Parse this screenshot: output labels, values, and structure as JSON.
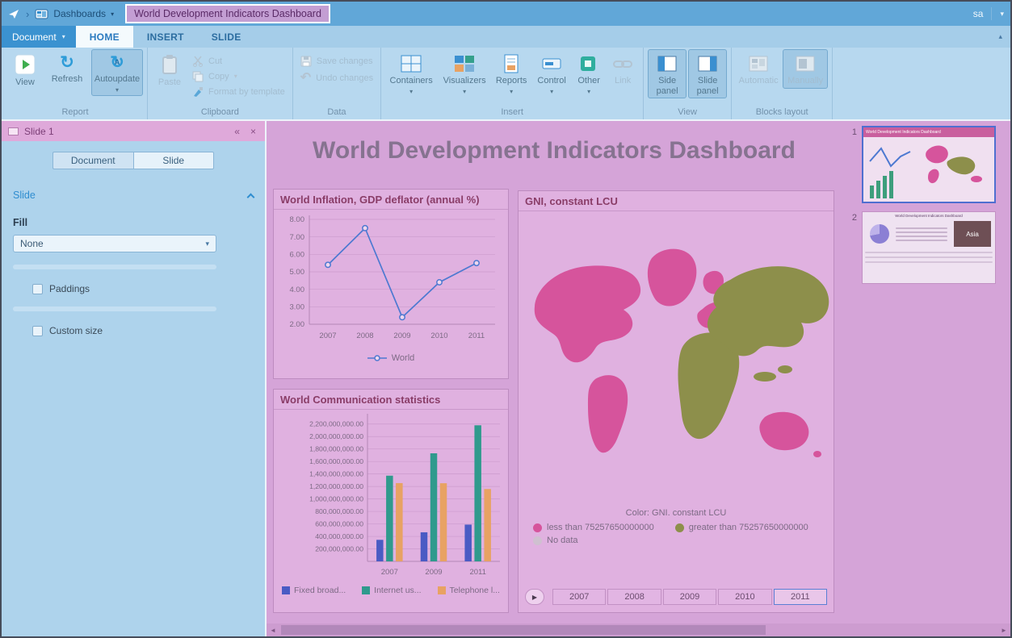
{
  "topbar": {
    "breadcrumb_item": "Dashboards",
    "title": "World Development Indicators Dashboard",
    "user": "sa"
  },
  "ribbon": {
    "document_button": "Document",
    "tabs": {
      "home": "HOME",
      "insert": "INSERT",
      "slide": "SLIDE"
    },
    "report": {
      "label": "Report",
      "view": "View",
      "refresh": "Refresh",
      "autoupdate": "Autoupdate"
    },
    "clipboard": {
      "label": "Clipboard",
      "paste": "Paste",
      "cut": "Cut",
      "copy": "Copy",
      "format": "Format by template"
    },
    "data_group": {
      "label": "Data",
      "save": "Save changes",
      "undo": "Undo changes"
    },
    "insert_group": {
      "label": "Insert",
      "containers": "Containers",
      "visualizers": "Visualizers",
      "reports": "Reports",
      "control": "Control",
      "other": "Other",
      "link": "Link"
    },
    "view_group": {
      "label": "View",
      "side_panel": "Side panel",
      "slide_panel": "Slide panel"
    },
    "blocks_group": {
      "label": "Blocks layout",
      "automatic": "Automatic",
      "manually": "Manually"
    }
  },
  "side_panel": {
    "header": "Slide 1",
    "document_tab": "Document",
    "slide_tab": "Slide",
    "section": "Slide",
    "fill_label": "Fill",
    "fill_value": "None",
    "paddings_label": "Paddings",
    "custom_size_label": "Custom size"
  },
  "canvas": {
    "title": "World Development Indicators Dashboard"
  },
  "chart_data": [
    {
      "type": "line",
      "title": "World Inflation, GDP deflator (annual %)",
      "categories": [
        "2007",
        "2008",
        "2009",
        "2010",
        "2011"
      ],
      "series": [
        {
          "name": "World",
          "values": [
            5.4,
            7.5,
            2.4,
            4.4,
            5.5
          ]
        }
      ],
      "ylim": [
        2,
        8
      ],
      "yticks": [
        2,
        3,
        4,
        5,
        6,
        7,
        8
      ],
      "grid": true,
      "legend_position": "bottom"
    },
    {
      "type": "bar",
      "title": "World Communication statistics",
      "categories": [
        "2007",
        "2009",
        "2011"
      ],
      "series": [
        {
          "name": "Fixed broad...",
          "color": "#4a5bc4",
          "values": [
            345000000,
            466000000,
            589000000
          ]
        },
        {
          "name": "Internet us...",
          "color": "#2f9a8d",
          "values": [
            1373000000,
            1731000000,
            2180000000
          ]
        },
        {
          "name": "Telephone l...",
          "color": "#e8a263",
          "values": [
            1254000000,
            1252000000,
            1159000000
          ]
        }
      ],
      "ylim": [
        0,
        2300000000
      ],
      "ytick_start": 200000000,
      "ytick_end": 2200000000,
      "ytick_step": 200000000,
      "grid": true,
      "legend_position": "bottom"
    },
    {
      "type": "map",
      "title": "GNI, constant LCU",
      "color_caption": "Color: GNI. constant LCU",
      "classes": [
        {
          "label": "less than 75257650000000",
          "color": "#d6549c"
        },
        {
          "label": "greater than 75257650000000",
          "color": "#8d8f4b"
        },
        {
          "label": "No data",
          "color": "#cfc0d0"
        }
      ],
      "years": [
        "2007",
        "2008",
        "2009",
        "2010",
        "2011"
      ],
      "selected_year": "2011"
    }
  ],
  "thumbnails": {
    "one": {
      "number": "1",
      "selected": true
    },
    "two": {
      "number": "2",
      "selected": false,
      "asia": "Asia"
    }
  },
  "icons": {
    "caret_down": "▾",
    "caret_up": "▴",
    "chevron_right": "›",
    "collapse_left": "«",
    "close": "×",
    "refresh": "↻",
    "undo": "↶",
    "autoupdate_letter": "A",
    "play": "▶",
    "scroll_left": "◄",
    "scroll_right": "►"
  },
  "colors": {
    "accent_blue": "#2f8dd0",
    "canvas_pink": "#d5a4d8",
    "panel_pink": "#e0b1e0",
    "land_pink": "#d6549c",
    "land_olive": "#8d8f4b",
    "no_data_gray": "#cfc0d0",
    "line_blue": "#4d79d1",
    "bar_blue": "#4a5bc4",
    "bar_teal": "#2f9a8d",
    "bar_orange": "#e8a263",
    "selected_year_border": "#5b7fd4"
  }
}
